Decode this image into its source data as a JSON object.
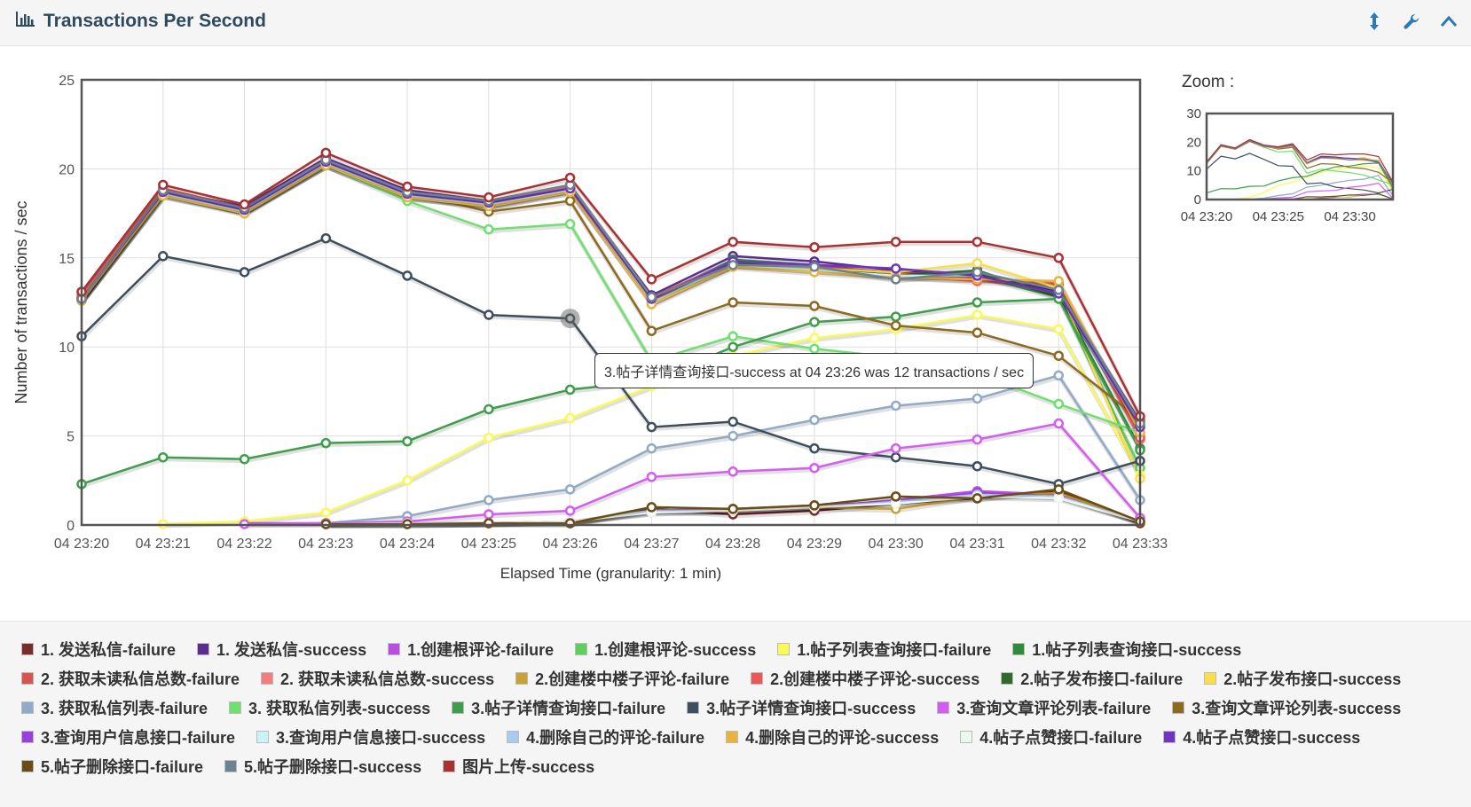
{
  "panel": {
    "title": "Transactions Per Second"
  },
  "zoom": {
    "label": "Zoom :",
    "y_ticks": [
      "30",
      "20",
      "10",
      "0"
    ],
    "x_ticks": [
      "04 23:20",
      "04 23:25",
      "04 23:30"
    ],
    "ylim": [
      0,
      30
    ]
  },
  "tooltip": {
    "text": "3.帖子详情查询接口-success at 04 23:26 was 12 transactions / sec"
  },
  "chart_data": {
    "type": "line",
    "title": "Transactions Per Second",
    "xlabel": "Elapsed Time (granularity: 1 min)",
    "ylabel": "Number of transactions / sec",
    "ylim": [
      0,
      25
    ],
    "yticks": [
      0,
      5,
      10,
      15,
      20,
      25
    ],
    "x": [
      "04 23:20",
      "04 23:21",
      "04 23:22",
      "04 23:23",
      "04 23:24",
      "04 23:25",
      "04 23:26",
      "04 23:27",
      "04 23:28",
      "04 23:29",
      "04 23:30",
      "04 23:31",
      "04 23:32",
      "04 23:33"
    ],
    "series": [
      {
        "name": "1. 发送私信-failure",
        "color": "#7b2b2b",
        "values": [
          null,
          null,
          null,
          0.05,
          0.05,
          0.1,
          0.1,
          0.9,
          0.6,
          0.8,
          1.2,
          1.5,
          1.9,
          0.1
        ]
      },
      {
        "name": "1. 发送私信-success",
        "color": "#5c2d91",
        "values": [
          12.8,
          18.8,
          17.9,
          20.6,
          18.8,
          18.2,
          19.0,
          12.9,
          15.1,
          14.8,
          14.3,
          14.1,
          13.1,
          5.8
        ]
      },
      {
        "name": "1.创建根评论-failure",
        "color": "#b94ee0",
        "values": [
          null,
          null,
          0.1,
          0.1,
          0.1,
          0.1,
          0.2,
          0.7,
          0.8,
          1.0,
          1.4,
          1.9,
          1.7,
          0.2
        ]
      },
      {
        "name": "1.创建根评论-success",
        "color": "#5ccf5c",
        "values": [
          12.6,
          18.5,
          17.6,
          20.3,
          18.5,
          17.9,
          18.8,
          12.6,
          14.7,
          14.5,
          13.9,
          14.0,
          12.8,
          3.2
        ]
      },
      {
        "name": "1.帖子列表查询接口-failure",
        "color": "#fafa55",
        "values": [
          null,
          0.05,
          0.2,
          0.7,
          2.5,
          4.9,
          6.0,
          7.8,
          9.5,
          10.5,
          11.0,
          11.8,
          11.0,
          2.8
        ]
      },
      {
        "name": "1.帖子列表查询接口-success",
        "color": "#2f8a3a",
        "values": [
          12.7,
          18.7,
          17.7,
          20.4,
          18.6,
          18.1,
          18.9,
          12.7,
          14.9,
          14.6,
          14.1,
          14.2,
          12.9,
          4.3
        ]
      },
      {
        "name": "2. 获取未读私信总数-failure",
        "color": "#d9534f",
        "values": [
          12.9,
          18.9,
          17.8,
          20.5,
          18.7,
          18.2,
          19.1,
          12.8,
          14.8,
          14.5,
          14.2,
          13.9,
          13.4,
          5.0
        ]
      },
      {
        "name": "2. 获取未读私信总数-success",
        "color": "#f47c7c",
        "values": [
          12.8,
          18.8,
          17.7,
          20.4,
          18.6,
          18.1,
          19.0,
          12.7,
          14.7,
          14.4,
          14.1,
          13.8,
          13.6,
          4.8
        ]
      },
      {
        "name": "2.创建楼中楼子评论-failure",
        "color": "#c9a235",
        "values": [
          null,
          null,
          null,
          0.05,
          0.05,
          0.1,
          0.1,
          0.8,
          0.9,
          1.0,
          0.9,
          1.6,
          1.8,
          0.2
        ]
      },
      {
        "name": "2.创建楼中楼子评论-success",
        "color": "#ee5555",
        "values": [
          12.7,
          18.7,
          17.6,
          20.3,
          18.5,
          18.0,
          18.9,
          12.6,
          14.6,
          14.3,
          14.0,
          13.7,
          13.5,
          4.9
        ]
      },
      {
        "name": "2.帖子发布接口-failure",
        "color": "#2e6b2a",
        "values": [
          12.6,
          18.6,
          17.6,
          20.2,
          18.4,
          18.0,
          18.8,
          12.5,
          14.7,
          14.4,
          14.0,
          14.3,
          12.8,
          5.6
        ]
      },
      {
        "name": "2.帖子发布接口-success",
        "color": "#f9e04a",
        "values": [
          12.6,
          18.6,
          17.6,
          20.2,
          18.4,
          17.9,
          18.7,
          12.5,
          14.6,
          14.4,
          14.2,
          14.7,
          13.3,
          2.6
        ]
      },
      {
        "name": "3. 获取私信列表-failure",
        "color": "#90aac8",
        "values": [
          null,
          null,
          null,
          0.1,
          0.5,
          1.4,
          2.0,
          4.3,
          5.0,
          5.9,
          6.7,
          7.1,
          8.4,
          1.4
        ]
      },
      {
        "name": "3. 获取私信列表-success",
        "color": "#6ee06e",
        "values": [
          12.6,
          18.5,
          17.6,
          20.2,
          18.2,
          16.6,
          16.9,
          9.2,
          10.6,
          9.9,
          9.4,
          8.5,
          6.8,
          5.2
        ]
      },
      {
        "name": "3.帖子详情查询接口-failure",
        "color": "#3f9e4b",
        "values": [
          2.3,
          3.8,
          3.7,
          4.6,
          4.7,
          6.5,
          7.6,
          8.1,
          10.0,
          11.4,
          11.7,
          12.5,
          12.7,
          4.2
        ]
      },
      {
        "name": "3.帖子详情查询接口-success",
        "color": "#3d4e5e",
        "values": [
          10.6,
          15.1,
          14.2,
          16.1,
          14.0,
          11.8,
          11.6,
          5.5,
          5.8,
          4.3,
          3.8,
          3.3,
          2.3,
          3.6
        ]
      },
      {
        "name": "3.查询文章评论列表-failure",
        "color": "#d45cf2",
        "values": [
          null,
          null,
          0.05,
          0.1,
          0.2,
          0.6,
          0.8,
          2.7,
          3.0,
          3.2,
          4.3,
          4.8,
          5.7,
          0.4
        ]
      },
      {
        "name": "3.查询文章评论列表-success",
        "color": "#8c6a1f",
        "values": [
          12.7,
          18.7,
          17.5,
          20.3,
          18.7,
          17.6,
          18.2,
          10.9,
          12.5,
          12.3,
          11.2,
          10.8,
          9.5,
          5.9
        ]
      },
      {
        "name": "3.查询用户信息接口-failure",
        "color": "#9b3fe0",
        "values": [
          null,
          null,
          null,
          0.05,
          0.1,
          0.1,
          0.2,
          0.8,
          0.9,
          1.1,
          1.3,
          1.8,
          1.6,
          0.2
        ]
      },
      {
        "name": "3.查询用户信息接口-success",
        "color": "#c9f3f7",
        "values": [
          12.7,
          18.6,
          17.6,
          20.3,
          18.5,
          18.0,
          18.8,
          12.5,
          14.6,
          14.3,
          14.0,
          14.0,
          13.0,
          5.4
        ]
      },
      {
        "name": "4.删除自己的评论-failure",
        "color": "#a8cbee",
        "values": [
          null,
          null,
          null,
          0.05,
          0.05,
          0.1,
          0.2,
          0.8,
          0.8,
          1.0,
          1.3,
          1.7,
          1.6,
          0.2
        ]
      },
      {
        "name": "4.删除自己的评论-success",
        "color": "#eab43b",
        "values": [
          12.6,
          18.5,
          17.5,
          20.2,
          18.4,
          17.9,
          18.7,
          12.4,
          14.5,
          14.2,
          13.9,
          13.8,
          13.7,
          5.2
        ]
      },
      {
        "name": "4.帖子点赞接口-failure",
        "color": "#eef7ee",
        "values": [
          null,
          null,
          null,
          0.05,
          0.1,
          0.1,
          0.2,
          0.7,
          0.8,
          1.0,
          1.2,
          1.6,
          1.5,
          0.2
        ]
      },
      {
        "name": "4.帖子点赞接口-success",
        "color": "#6f35c2",
        "values": [
          12.7,
          18.7,
          17.7,
          20.4,
          18.6,
          18.1,
          18.9,
          12.7,
          14.8,
          14.6,
          14.4,
          14.0,
          13.0,
          5.5
        ]
      },
      {
        "name": "5.帖子删除接口-failure",
        "color": "#6b4c14",
        "values": [
          null,
          null,
          null,
          0.05,
          0.05,
          0.1,
          0.1,
          1.0,
          0.9,
          1.1,
          1.6,
          1.5,
          2.0,
          0.2
        ]
      },
      {
        "name": "5.帖子删除接口-success",
        "color": "#6f8191",
        "values": [
          12.7,
          18.8,
          17.8,
          20.5,
          18.7,
          18.2,
          19.1,
          12.8,
          14.6,
          14.5,
          13.8,
          14.2,
          13.2,
          5.7
        ]
      },
      {
        "name": "图片上传-success",
        "color": "#a83232",
        "values": [
          13.1,
          19.1,
          18.0,
          20.9,
          19.0,
          18.4,
          19.5,
          13.8,
          15.9,
          15.6,
          15.9,
          15.9,
          15.0,
          6.1
        ]
      }
    ]
  }
}
